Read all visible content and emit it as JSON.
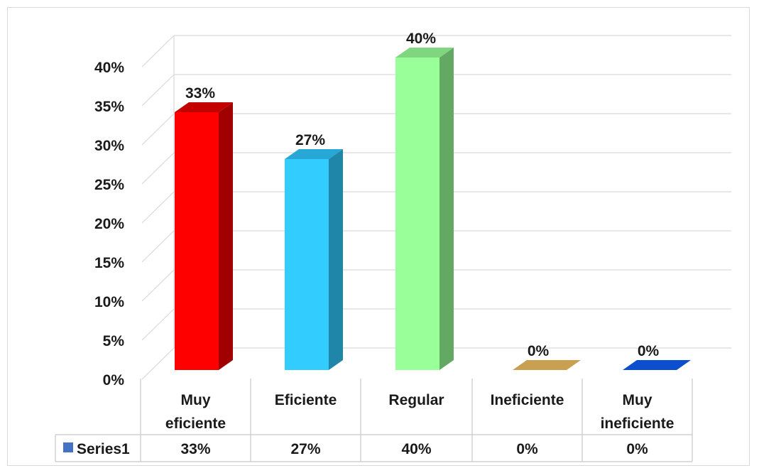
{
  "chart_data": {
    "type": "bar",
    "categories": [
      [
        "Muy",
        "eficiente"
      ],
      [
        "Eficiente"
      ],
      [
        "Regular"
      ],
      [
        "Ineficiente"
      ],
      [
        "Muy",
        "ineficiente"
      ]
    ],
    "series": [
      {
        "name": "Series1",
        "values": [
          33,
          27,
          40,
          0,
          0
        ],
        "value_labels": [
          "33%",
          "27%",
          "40%",
          "0%",
          "0%"
        ]
      }
    ],
    "bar_colors": [
      "#ff0000",
      "#33ccff",
      "#99ff99",
      "#c9a052",
      "#0b4fcf"
    ],
    "bar_side_colors": [
      "#a00000",
      "#1f86aa",
      "#63a863",
      "#957634",
      "#06338a"
    ],
    "bar_top_colors": [
      "#c20000",
      "#26a7d6",
      "#7fd67f",
      "#b08b44",
      "#093fa5"
    ],
    "ylim": [
      0,
      40
    ],
    "ytick_values": [
      0,
      5,
      10,
      15,
      20,
      25,
      30,
      35,
      40
    ],
    "ytick_labels": [
      "0%",
      "5%",
      "10%",
      "15%",
      "20%",
      "25%",
      "30%",
      "35%",
      "40%"
    ],
    "grid": true,
    "three_d": true,
    "data_table": true,
    "legend_key_color": "#4472c4"
  }
}
